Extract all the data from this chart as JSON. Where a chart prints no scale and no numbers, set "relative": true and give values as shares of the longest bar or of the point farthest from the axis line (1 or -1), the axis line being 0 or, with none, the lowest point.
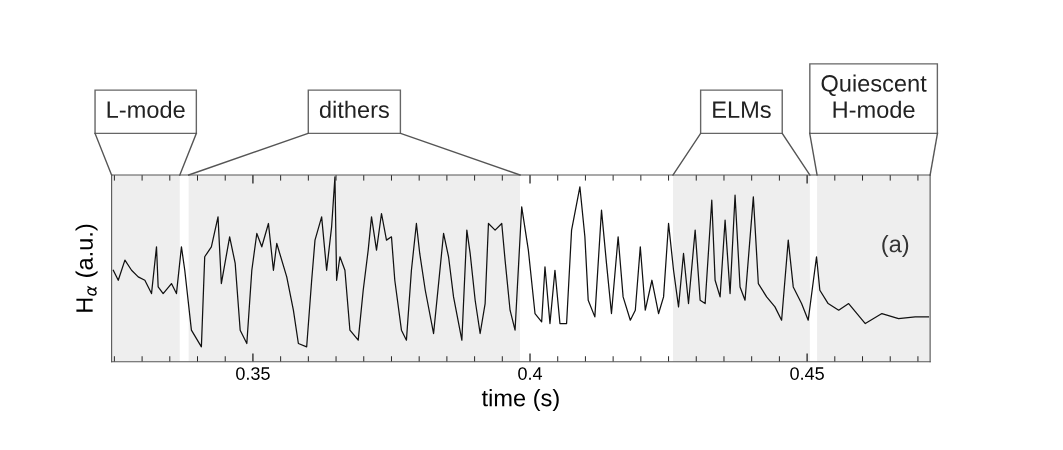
{
  "chart_data": {
    "type": "line",
    "relative": true,
    "color": "#111111",
    "xlabel": "time (s)",
    "ylabel": "H$_{α}$ (a.u.)",
    "xlim": [
      0.3245,
      0.4722
    ],
    "xticks": [
      0.35,
      0.4,
      0.45
    ],
    "annotations": [
      "(a)"
    ],
    "bands": [
      {
        "axis": "x",
        "from": 0.3245,
        "to": 0.3368,
        "label": "L-mode",
        "color": "#eeeeee"
      },
      {
        "axis": "x",
        "from": 0.3384,
        "to": 0.3982,
        "label": "dithers",
        "color": "#eeeeee"
      },
      {
        "axis": "x",
        "from": 0.4258,
        "to": 0.4505,
        "label": "ELMs",
        "color": "#eeeeee"
      },
      {
        "axis": "x",
        "from": 0.4518,
        "to": 0.4722,
        "label": "Quiescent\nH-mode",
        "color": "#eeeeee"
      }
    ],
    "x": [
      0.3248,
      0.3257,
      0.3269,
      0.3281,
      0.3293,
      0.3305,
      0.3317,
      0.3326,
      0.3329,
      0.3338,
      0.3353,
      0.3362,
      0.3371,
      0.3377,
      0.3389,
      0.3407,
      0.3413,
      0.3425,
      0.3437,
      0.3443,
      0.3458,
      0.3468,
      0.3477,
      0.3489,
      0.3498,
      0.3507,
      0.3516,
      0.3528,
      0.3537,
      0.3543,
      0.3561,
      0.3573,
      0.3582,
      0.3597,
      0.3606,
      0.3612,
      0.3624,
      0.3633,
      0.3642,
      0.3648,
      0.3651,
      0.3657,
      0.3666,
      0.3675,
      0.369,
      0.3699,
      0.3708,
      0.3714,
      0.3723,
      0.3732,
      0.3741,
      0.375,
      0.3756,
      0.3768,
      0.3777,
      0.3786,
      0.3795,
      0.3801,
      0.3811,
      0.3826,
      0.3835,
      0.3844,
      0.3853,
      0.3862,
      0.3877,
      0.3886,
      0.3892,
      0.3901,
      0.391,
      0.3919,
      0.3925,
      0.3937,
      0.3949,
      0.3955,
      0.3964,
      0.3973,
      0.3985,
      0.3997,
      0.4009,
      0.4021,
      0.4027,
      0.4036,
      0.4045,
      0.4054,
      0.4066,
      0.4075,
      0.409,
      0.4099,
      0.4105,
      0.4117,
      0.4129,
      0.4138,
      0.4147,
      0.4159,
      0.4168,
      0.4181,
      0.419,
      0.4199,
      0.4208,
      0.422,
      0.4232,
      0.4241,
      0.425,
      0.4259,
      0.4268,
      0.4277,
      0.4286,
      0.4298,
      0.4307,
      0.4316,
      0.4328,
      0.4334,
      0.4343,
      0.4352,
      0.4361,
      0.437,
      0.4379,
      0.4388,
      0.4403,
      0.4412,
      0.4427,
      0.4442,
      0.4454,
      0.4466,
      0.4475,
      0.449,
      0.4502,
      0.4517,
      0.4523,
      0.4538,
      0.4557,
      0.4575,
      0.4605,
      0.4635,
      0.4665,
      0.4695,
      0.4719
    ],
    "values": [
      0.495,
      0.441,
      0.55,
      0.495,
      0.459,
      0.441,
      0.369,
      0.622,
      0.405,
      0.369,
      0.423,
      0.369,
      0.622,
      0.495,
      0.171,
      0.081,
      0.568,
      0.622,
      0.784,
      0.423,
      0.676,
      0.532,
      0.171,
      0.099,
      0.495,
      0.694,
      0.622,
      0.748,
      0.495,
      0.64,
      0.459,
      0.279,
      0.099,
      0.081,
      0.441,
      0.658,
      0.784,
      0.495,
      0.73,
      1.0,
      0.441,
      0.568,
      0.495,
      0.171,
      0.117,
      0.387,
      0.604,
      0.784,
      0.604,
      0.802,
      0.658,
      0.676,
      0.441,
      0.171,
      0.117,
      0.495,
      0.748,
      0.586,
      0.387,
      0.153,
      0.423,
      0.694,
      0.568,
      0.351,
      0.117,
      0.712,
      0.586,
      0.333,
      0.153,
      0.315,
      0.748,
      0.712,
      0.748,
      0.55,
      0.279,
      0.171,
      0.838,
      0.604,
      0.261,
      0.216,
      0.514,
      0.207,
      0.495,
      0.207,
      0.207,
      0.712,
      0.946,
      0.676,
      0.333,
      0.243,
      0.82,
      0.532,
      0.261,
      0.676,
      0.351,
      0.225,
      0.279,
      0.622,
      0.279,
      0.441,
      0.261,
      0.351,
      0.748,
      0.495,
      0.297,
      0.586,
      0.315,
      0.712,
      0.333,
      0.315,
      0.874,
      0.441,
      0.351,
      0.766,
      0.369,
      0.901,
      0.405,
      0.333,
      0.892,
      0.423,
      0.351,
      0.297,
      0.225,
      0.658,
      0.405,
      0.315,
      0.225,
      0.568,
      0.387,
      0.315,
      0.279,
      0.315,
      0.207,
      0.261,
      0.234,
      0.243,
      0.243
    ]
  }
}
